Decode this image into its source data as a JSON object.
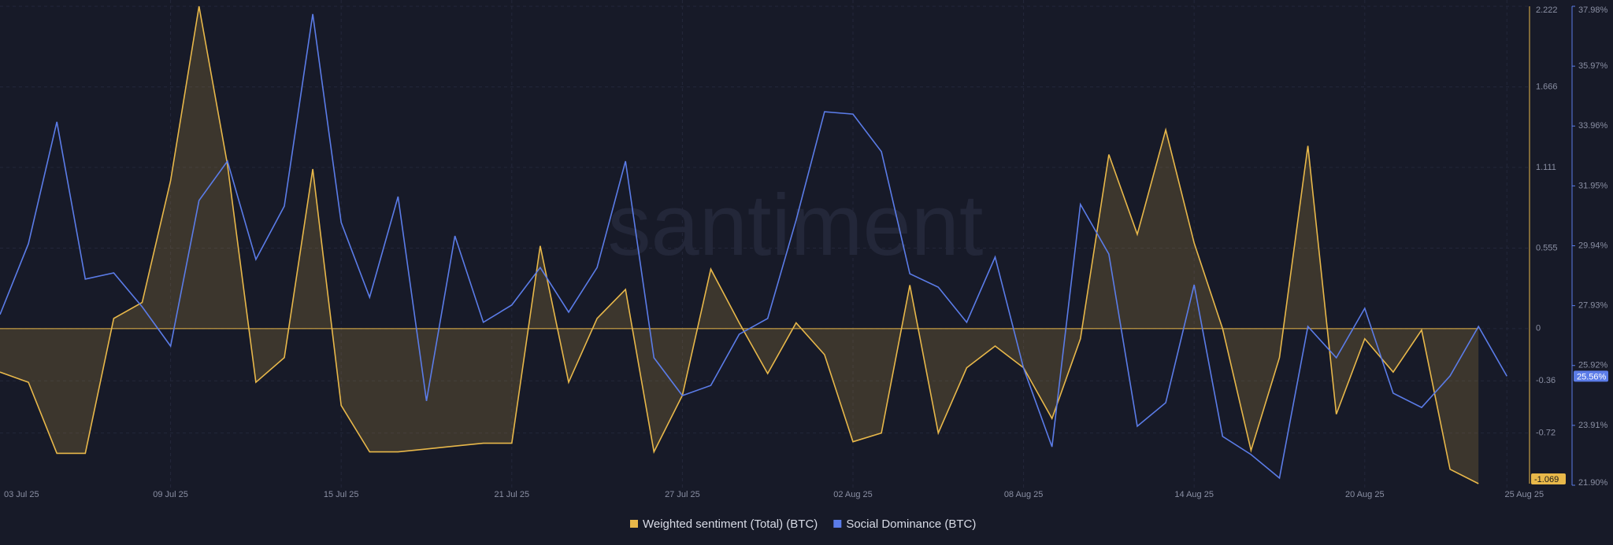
{
  "chart_data": {
    "type": "line",
    "watermark": "santiment",
    "categories": [
      "03 Jul 25",
      null,
      null,
      null,
      null,
      null,
      "09 Jul 25",
      null,
      null,
      null,
      null,
      null,
      "15 Jul 25",
      null,
      null,
      null,
      null,
      null,
      "21 Jul 25",
      null,
      null,
      null,
      null,
      null,
      "27 Jul 25",
      null,
      null,
      null,
      null,
      null,
      "02 Aug 25",
      null,
      null,
      null,
      null,
      null,
      "08 Aug 25",
      null,
      null,
      null,
      null,
      null,
      "14 Aug 25",
      null,
      null,
      null,
      null,
      null,
      "20 Aug 25",
      null,
      null,
      null,
      null,
      "25 Aug 25"
    ],
    "series": [
      {
        "name": "Weighted sentiment (Total) (BTC)",
        "color": "#e8b84a",
        "axis": "y",
        "area": true,
        "values": [
          -0.3,
          -0.37,
          -0.86,
          -0.86,
          0.07,
          0.18,
          1.02,
          2.222,
          1.13,
          -0.37,
          -0.2,
          1.1,
          -0.53,
          -0.85,
          -0.85,
          -0.83,
          -0.81,
          -0.79,
          -0.79,
          0.57,
          -0.37,
          0.07,
          0.27,
          -0.85,
          -0.46,
          0.41,
          0.04,
          -0.31,
          0.04,
          -0.18,
          -0.78,
          -0.72,
          0.3,
          -0.72,
          -0.27,
          -0.12,
          -0.27,
          -0.62,
          -0.07,
          1.2,
          0.65,
          1.37,
          0.59,
          0.0,
          -0.84,
          -0.2,
          1.26,
          -0.59,
          -0.07,
          -0.3,
          -0.01,
          -0.97,
          -1.069,
          null
        ],
        "value_labels": [
          null,
          null,
          null,
          null,
          null,
          null,
          null,
          null,
          null,
          null,
          null,
          null,
          null,
          null,
          null,
          null,
          null,
          null,
          null,
          null,
          null,
          null,
          null,
          null,
          null,
          null,
          null,
          null,
          null,
          null,
          null,
          null,
          null,
          null,
          null,
          null,
          null,
          null,
          null,
          null,
          null,
          null,
          null,
          null,
          null,
          null,
          null,
          null,
          null,
          null,
          null,
          null,
          "-1.069",
          null
        ]
      },
      {
        "name": "Social Dominance (BTC)",
        "color": "#5b7ce8",
        "axis": "y2",
        "values": [
          27.63,
          30.01,
          34.1,
          28.82,
          29.03,
          27.89,
          26.57,
          31.46,
          32.78,
          29.48,
          31.27,
          37.72,
          30.72,
          28.21,
          31.59,
          24.73,
          30.27,
          27.37,
          27.95,
          29.21,
          27.71,
          29.21,
          32.78,
          26.18,
          24.91,
          25.25,
          26.97,
          27.5,
          30.8,
          34.44,
          34.36,
          33.1,
          29.0,
          28.55,
          27.37,
          29.56,
          25.83,
          23.19,
          31.33,
          29.66,
          23.88,
          24.67,
          28.63,
          23.54,
          22.93,
          22.14,
          27.23,
          26.18,
          27.84,
          24.99,
          24.51,
          25.57,
          27.23,
          25.56
        ],
        "value_labels": [
          null,
          null,
          null,
          null,
          null,
          null,
          null,
          null,
          null,
          null,
          null,
          null,
          null,
          null,
          null,
          null,
          null,
          null,
          null,
          null,
          null,
          null,
          null,
          null,
          null,
          null,
          null,
          null,
          null,
          null,
          null,
          null,
          null,
          null,
          null,
          null,
          null,
          null,
          null,
          null,
          null,
          null,
          null,
          null,
          null,
          null,
          null,
          null,
          null,
          null,
          null,
          null,
          null,
          "25.56%"
        ]
      }
    ],
    "ylim": [
      -1.069,
      2.222
    ],
    "yticks": [
      2.222,
      1.666,
      1.111,
      0.555,
      0,
      -0.36,
      -0.72
    ],
    "y2lim": [
      21.9,
      37.98
    ],
    "y2ticks": [
      {
        "value": 37.98,
        "label": "37.98%"
      },
      {
        "value": 35.97,
        "label": "35.97%"
      },
      {
        "value": 33.96,
        "label": "33.96%"
      },
      {
        "value": 31.95,
        "label": "31.95%"
      },
      {
        "value": 29.94,
        "label": "29.94%"
      },
      {
        "value": 27.93,
        "label": "27.93%"
      },
      {
        "value": 25.92,
        "label": "25.92%"
      },
      {
        "value": 23.91,
        "label": "23.91%"
      },
      {
        "value": 21.9,
        "label": "21.90%"
      }
    ],
    "grid": true,
    "legend": "bottom"
  }
}
